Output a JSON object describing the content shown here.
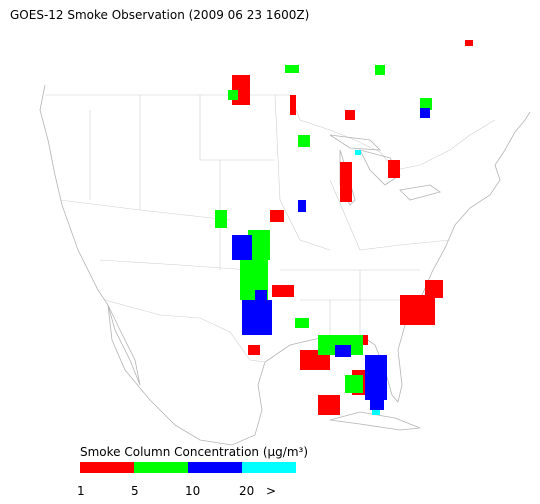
{
  "title": "GOES-12 Smoke Observation (2009 06 23  1600Z)",
  "legend": {
    "title": "Smoke Column Concentration (μg/m³)",
    "colors": [
      "#ff0000",
      "#00ff00",
      "#0000ff",
      "#00ffff"
    ],
    "labels": [
      "1",
      "5",
      "10",
      "20",
      ">"
    ]
  }
}
